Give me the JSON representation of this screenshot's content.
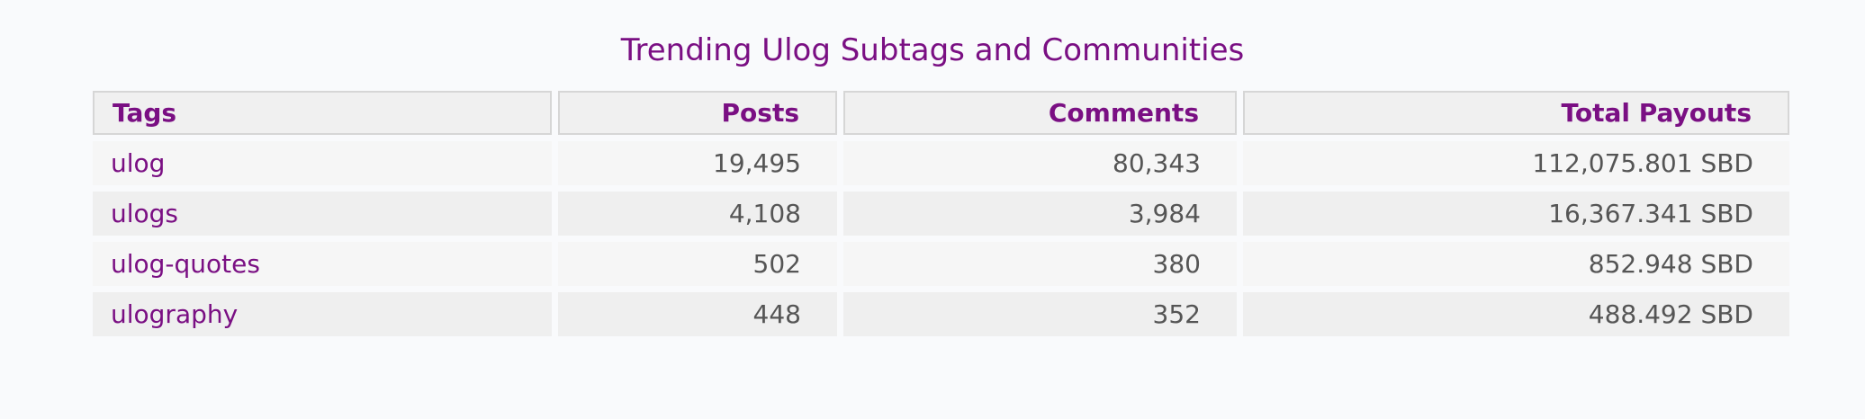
{
  "title": "Trending Ulog Subtags and Communities",
  "table": {
    "headers": {
      "tags": "Tags",
      "posts": "Posts",
      "comments": "Comments",
      "payouts": "Total Payouts"
    },
    "rows": [
      {
        "tag": "ulog",
        "posts": "19,495",
        "comments": "80,343",
        "payouts": "112,075.801 SBD"
      },
      {
        "tag": "ulogs",
        "posts": "4,108",
        "comments": "3,984",
        "payouts": "16,367.341 SBD"
      },
      {
        "tag": "ulog-quotes",
        "posts": "502",
        "comments": "380",
        "payouts": "852.948 SBD"
      },
      {
        "tag": "ulography",
        "posts": "448",
        "comments": "352",
        "payouts": "488.492 SBD"
      }
    ]
  },
  "colors": {
    "accent": "#7a0f83",
    "text": "#555555",
    "background": "#f9fafc"
  }
}
